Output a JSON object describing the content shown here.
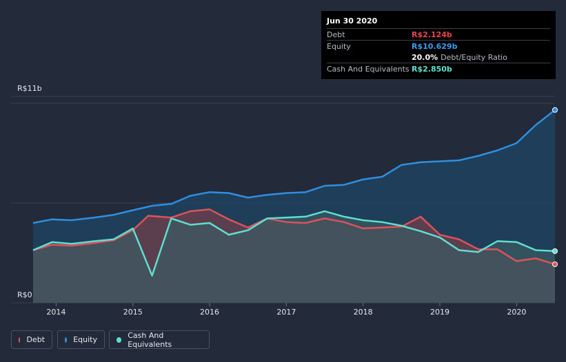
{
  "chart_data": {
    "type": "area",
    "title": "",
    "currency_prefix": "R$",
    "y_axis_labels": {
      "top": "R$11b",
      "bottom": "R$0"
    },
    "ylim": [
      0,
      11
    ],
    "xlim": [
      2013.7,
      2020.5
    ],
    "x_ticks": [
      2014,
      2015,
      2016,
      2017,
      2018,
      2019,
      2020
    ],
    "x_tick_labels": [
      "2014",
      "2015",
      "2016",
      "2017",
      "2018",
      "2019",
      "2020"
    ],
    "series": [
      {
        "name": "Equity",
        "color": "#2f8fe0",
        "fill": "#1d4666",
        "points": [
          [
            2013.7,
            4.4
          ],
          [
            2013.95,
            4.6
          ],
          [
            2014.2,
            4.55
          ],
          [
            2014.5,
            4.7
          ],
          [
            2014.75,
            4.85
          ],
          [
            2015.0,
            5.1
          ],
          [
            2015.25,
            5.35
          ],
          [
            2015.5,
            5.45
          ],
          [
            2015.75,
            5.9
          ],
          [
            2016.0,
            6.1
          ],
          [
            2016.25,
            6.05
          ],
          [
            2016.5,
            5.8
          ],
          [
            2016.75,
            5.95
          ],
          [
            2017.0,
            6.05
          ],
          [
            2017.25,
            6.1
          ],
          [
            2017.5,
            6.45
          ],
          [
            2017.75,
            6.5
          ],
          [
            2018.0,
            6.8
          ],
          [
            2018.25,
            6.95
          ],
          [
            2018.5,
            7.6
          ],
          [
            2018.75,
            7.75
          ],
          [
            2019.0,
            7.8
          ],
          [
            2019.25,
            7.85
          ],
          [
            2019.5,
            8.1
          ],
          [
            2019.75,
            8.4
          ],
          [
            2020.0,
            8.8
          ],
          [
            2020.25,
            9.8
          ],
          [
            2020.5,
            10.629
          ]
        ]
      },
      {
        "name": "Debt",
        "color": "#e0525a",
        "fill": "#70404b",
        "points": [
          [
            2013.7,
            2.9
          ],
          [
            2013.95,
            3.2
          ],
          [
            2014.2,
            3.15
          ],
          [
            2014.5,
            3.3
          ],
          [
            2014.75,
            3.45
          ],
          [
            2015.0,
            4.0
          ],
          [
            2015.2,
            4.8
          ],
          [
            2015.5,
            4.7
          ],
          [
            2015.75,
            5.05
          ],
          [
            2016.0,
            5.15
          ],
          [
            2016.25,
            4.6
          ],
          [
            2016.5,
            4.15
          ],
          [
            2016.75,
            4.65
          ],
          [
            2017.0,
            4.45
          ],
          [
            2017.25,
            4.4
          ],
          [
            2017.5,
            4.65
          ],
          [
            2017.75,
            4.45
          ],
          [
            2018.0,
            4.1
          ],
          [
            2018.25,
            4.15
          ],
          [
            2018.5,
            4.2
          ],
          [
            2018.75,
            4.75
          ],
          [
            2019.0,
            3.75
          ],
          [
            2019.25,
            3.5
          ],
          [
            2019.5,
            2.95
          ],
          [
            2019.75,
            2.95
          ],
          [
            2020.0,
            2.3
          ],
          [
            2020.25,
            2.45
          ],
          [
            2020.5,
            2.124
          ]
        ]
      },
      {
        "name": "Cash And Equivalents",
        "color": "#5ee0d0",
        "fill": "#3b5a62",
        "points": [
          [
            2013.7,
            2.9
          ],
          [
            2013.95,
            3.35
          ],
          [
            2014.2,
            3.25
          ],
          [
            2014.5,
            3.4
          ],
          [
            2014.75,
            3.5
          ],
          [
            2015.0,
            4.1
          ],
          [
            2015.25,
            1.5
          ],
          [
            2015.5,
            4.65
          ],
          [
            2015.75,
            4.3
          ],
          [
            2016.0,
            4.4
          ],
          [
            2016.25,
            3.75
          ],
          [
            2016.5,
            4.0
          ],
          [
            2016.75,
            4.65
          ],
          [
            2017.0,
            4.7
          ],
          [
            2017.25,
            4.75
          ],
          [
            2017.5,
            5.05
          ],
          [
            2017.75,
            4.75
          ],
          [
            2018.0,
            4.55
          ],
          [
            2018.25,
            4.45
          ],
          [
            2018.5,
            4.25
          ],
          [
            2018.75,
            3.95
          ],
          [
            2019.0,
            3.6
          ],
          [
            2019.25,
            2.9
          ],
          [
            2019.5,
            2.8
          ],
          [
            2019.75,
            3.4
          ],
          [
            2020.0,
            3.35
          ],
          [
            2020.25,
            2.9
          ],
          [
            2020.5,
            2.85
          ]
        ]
      }
    ]
  },
  "tooltip": {
    "date": "Jun 30 2020",
    "debt_label": "Debt",
    "debt_value": "R$2.124b",
    "equity_label": "Equity",
    "equity_value": "R$10.629b",
    "ratio_value": "20.0%",
    "ratio_label": "Debt/Equity Ratio",
    "cash_label": "Cash And Equivalents",
    "cash_value": "R$2.850b"
  },
  "legend": {
    "items": [
      {
        "label": "Debt",
        "color": "#e0525a"
      },
      {
        "label": "Equity",
        "color": "#2f8fe0"
      },
      {
        "label": "Cash And Equivalents",
        "color": "#5ee0d0"
      }
    ]
  },
  "colors": {
    "background": "#232b3a",
    "grid": "#3a4352",
    "debt_text": "#e8454f",
    "equity_text": "#3a9bf0",
    "cash_text": "#5ee0d0"
  }
}
